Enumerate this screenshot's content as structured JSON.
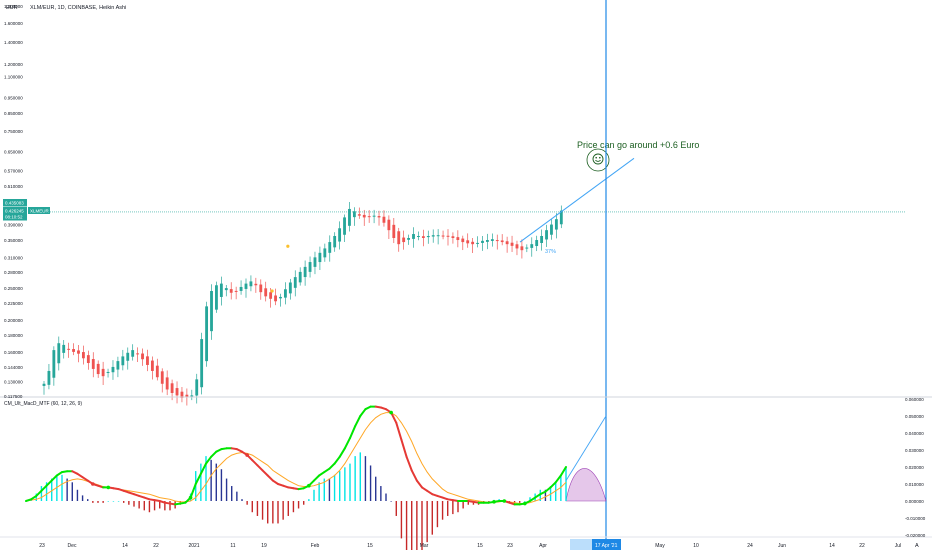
{
  "header": {
    "currency": "EUR",
    "title": "XLM/EUR, 1D, COINBASE, Heikin Ashi"
  },
  "price_badges": {
    "last": "0.435083",
    "symbol": "XLMEUR",
    "current": "0.426245",
    "countdown": "08:10:52",
    "line_value": 0.426
  },
  "annotation": {
    "text": "Price can go around +0.6 Euro",
    "smiley_icon": "smiley-face-icon",
    "pct_label": "37%"
  },
  "macd_panel": {
    "label": "CM_Ult_MacD_MTF (60, 12, 26, 9)"
  },
  "colors": {
    "up_candle": "#26a69a",
    "down_candle": "#ef5350",
    "macd_up": "#00e600",
    "macd_down": "#e53935",
    "signal": "#ffa726",
    "hist_pos_strong": "#00e5e5",
    "hist_pos_weak": "#283593",
    "hist_neg": "#c62828",
    "forecast": "#42a5f5",
    "crosshair": "#1e88e5",
    "arc_fill": "#e1bee7"
  },
  "chart_data": {
    "type": "candlestick",
    "title": "XLM/EUR, 1D, COINBASE, Heikin Ashi",
    "x_range": [
      "2020-11-21",
      "2021-07-01"
    ],
    "y_scale": "log",
    "y_ticks": [
      "1.800000",
      "1.600000",
      "1.400000",
      "1.200000",
      "1.100000",
      "0.950000",
      "0.850000",
      "0.750000",
      "0.650000",
      "0.570000",
      "0.510000",
      "0.435083",
      "0.426245",
      "0.390000",
      "0.350000",
      "0.310000",
      "0.280000",
      "0.250000",
      "0.225000",
      "0.200000",
      "0.180000",
      "0.160000",
      "0.144000",
      "0.130000",
      "0.117500"
    ],
    "x_ticks": [
      "23",
      "Dec",
      "14",
      "22",
      "2021",
      "11",
      "19",
      "Feb",
      "15",
      "Mar",
      "15",
      "23",
      "Apr",
      "12",
      "17 Apr '21",
      "May",
      "10",
      "24",
      "Jun",
      "14",
      "22",
      "Jul"
    ],
    "ha_close": [
      0.128,
      0.14,
      0.162,
      0.17,
      0.168,
      0.163,
      0.16,
      0.158,
      0.153,
      0.148,
      0.142,
      0.137,
      0.135,
      0.139,
      0.144,
      0.15,
      0.155,
      0.159,
      0.162,
      0.158,
      0.152,
      0.146,
      0.14,
      0.134,
      0.128,
      0.123,
      0.12,
      0.118,
      0.116,
      0.117,
      0.118,
      0.132,
      0.175,
      0.22,
      0.245,
      0.255,
      0.258,
      0.25,
      0.242,
      0.245,
      0.252,
      0.258,
      0.262,
      0.255,
      0.243,
      0.236,
      0.232,
      0.228,
      0.235,
      0.248,
      0.26,
      0.27,
      0.28,
      0.29,
      0.3,
      0.31,
      0.32,
      0.33,
      0.345,
      0.36,
      0.38,
      0.41,
      0.435,
      0.428,
      0.415,
      0.41,
      0.412,
      0.415,
      0.41,
      0.395,
      0.375,
      0.355,
      0.34,
      0.345,
      0.355,
      0.365,
      0.36,
      0.355,
      0.36,
      0.362,
      0.362,
      0.36,
      0.358,
      0.355,
      0.35,
      0.345,
      0.342,
      0.34,
      0.343,
      0.348,
      0.35,
      0.352,
      0.348,
      0.345,
      0.34,
      0.336,
      0.33,
      0.326,
      0.332,
      0.34,
      0.35,
      0.36,
      0.375,
      0.39,
      0.405,
      0.43
    ],
    "signal_markers": [
      {
        "x": "2021-01-31",
        "y": 0.335
      },
      {
        "x": "2021-01-27",
        "y": 0.245
      }
    ],
    "forecast_line": {
      "from": [
        "2021-04-02",
        0.345
      ],
      "to": [
        "2021-04-27",
        0.62
      ]
    },
    "macd": {
      "ylim": [
        -0.02,
        0.06
      ],
      "y_ticks": [
        "0.060000",
        "0.050000",
        "0.040000",
        "0.030000",
        "0.020000",
        "0.010000",
        "0.000000",
        "-0.010000",
        "-0.020000"
      ],
      "macd_line": [
        0.0,
        0.001,
        0.003,
        0.006,
        0.009,
        0.012,
        0.015,
        0.017,
        0.0175,
        0.0175,
        0.016,
        0.014,
        0.012,
        0.01,
        0.009,
        0.008,
        0.008,
        0.0075,
        0.007,
        0.006,
        0.005,
        0.004,
        0.003,
        0.002,
        0.001,
        0.0005,
        0.0,
        -0.001,
        -0.0015,
        -0.002,
        -0.0015,
        -0.001,
        0.002,
        0.01,
        0.016,
        0.022,
        0.026,
        0.029,
        0.0305,
        0.031,
        0.031,
        0.0305,
        0.029,
        0.027,
        0.024,
        0.021,
        0.018,
        0.015,
        0.012,
        0.01,
        0.009,
        0.008,
        0.0075,
        0.007,
        0.0075,
        0.009,
        0.012,
        0.015,
        0.017,
        0.019,
        0.022,
        0.026,
        0.031,
        0.037,
        0.044,
        0.05,
        0.054,
        0.0555,
        0.0555,
        0.055,
        0.054,
        0.052,
        0.046,
        0.036,
        0.026,
        0.018,
        0.012,
        0.008,
        0.006,
        0.004,
        0.003,
        0.002,
        0.001,
        0.0005,
        0.0,
        0.0,
        0.0,
        -0.0005,
        -0.001,
        -0.001,
        -0.001,
        -0.0005,
        0.0,
        0.0,
        -0.001,
        -0.002,
        -0.002,
        -0.0015,
        0.0,
        0.002,
        0.004,
        0.0055,
        0.008,
        0.011,
        0.015,
        0.02
      ],
      "signal_line": [
        0.0,
        0.0005,
        0.001,
        0.002,
        0.004,
        0.006,
        0.008,
        0.01,
        0.0115,
        0.0125,
        0.013,
        0.0125,
        0.0115,
        0.0105,
        0.0095,
        0.0085,
        0.008,
        0.0075,
        0.007,
        0.0065,
        0.006,
        0.0055,
        0.005,
        0.0045,
        0.004,
        0.003,
        0.002,
        0.0015,
        0.001,
        0.0,
        -0.0005,
        -0.0005,
        0.0,
        0.002,
        0.006,
        0.01,
        0.015,
        0.019,
        0.022,
        0.025,
        0.027,
        0.028,
        0.0285,
        0.028,
        0.027,
        0.025,
        0.023,
        0.021,
        0.018,
        0.016,
        0.014,
        0.012,
        0.0105,
        0.009,
        0.0085,
        0.0085,
        0.009,
        0.01,
        0.011,
        0.013,
        0.015,
        0.018,
        0.022,
        0.027,
        0.032,
        0.037,
        0.042,
        0.046,
        0.049,
        0.051,
        0.052,
        0.052,
        0.05,
        0.046,
        0.041,
        0.035,
        0.028,
        0.022,
        0.017,
        0.013,
        0.01,
        0.007,
        0.005,
        0.004,
        0.003,
        0.002,
        0.001,
        0.0005,
        0.0,
        -0.0005,
        -0.0008,
        -0.0008,
        -0.0005,
        0.0,
        -0.0005,
        -0.001,
        -0.0015,
        -0.0015,
        -0.001,
        0.0,
        0.001,
        0.0025,
        0.004,
        0.006,
        0.008,
        0.011
      ],
      "forecast": {
        "from": [
          "2021-04-06",
          0.012
        ],
        "to": [
          "2021-04-16",
          0.05
        ]
      }
    }
  }
}
